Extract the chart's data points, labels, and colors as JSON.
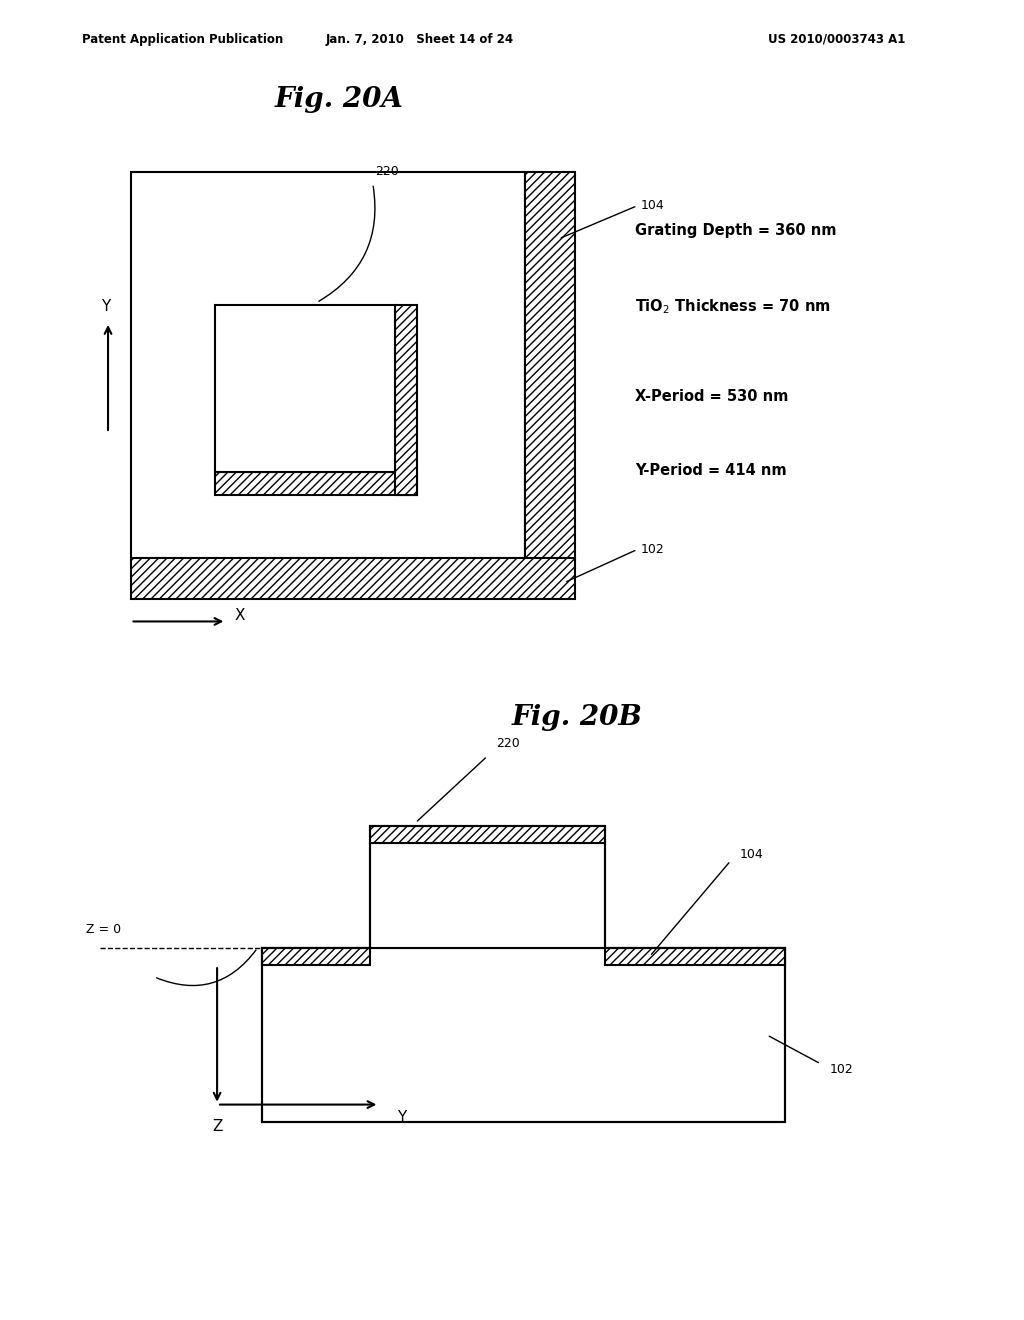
{
  "bg_color": "#ffffff",
  "header_left": "Patent Application Publication",
  "header_center": "Jan. 7, 2010   Sheet 14 of 24",
  "header_right": "US 2010/0003743 A1",
  "fig20a_title": "Fig. 20A",
  "fig20b_title": "Fig. 20B",
  "label_220a": "220",
  "label_104a": "104",
  "label_102a": "102",
  "label_220b": "220",
  "label_104b": "104",
  "label_102b": "102",
  "label_z0": "Z = 0",
  "hatch_pattern": "////",
  "line_color": "#000000",
  "lw": 1.5,
  "ann_line1": "Grating Depth = 360 nm",
  "ann_line2": "TiO$_2$ Thickness = 70 nm",
  "ann_line3": "X-Period = 530 nm",
  "ann_line4": "Y-Period = 414 nm"
}
